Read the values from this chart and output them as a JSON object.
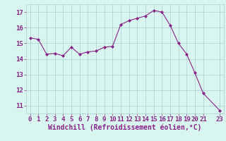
{
  "x": [
    0,
    1,
    2,
    3,
    4,
    5,
    6,
    7,
    8,
    9,
    10,
    11,
    12,
    13,
    14,
    15,
    16,
    17,
    18,
    19,
    20,
    21,
    23
  ],
  "y": [
    15.35,
    15.25,
    14.3,
    14.35,
    14.2,
    14.75,
    14.3,
    14.45,
    14.5,
    14.75,
    14.8,
    16.2,
    16.45,
    16.6,
    16.75,
    17.1,
    17.0,
    16.15,
    15.0,
    14.3,
    13.1,
    11.8,
    10.7
  ],
  "line_color": "#882288",
  "marker": "D",
  "marker_size": 2.0,
  "bg_color": "#d8f5f0",
  "grid_color": "#aacece",
  "xlabel": "Windchill (Refroidissement éolien,°C)",
  "xlabel_color": "#882288",
  "tick_color": "#882288",
  "ylim": [
    10.5,
    17.5
  ],
  "xlim": [
    -0.5,
    23.5
  ],
  "yticks": [
    11,
    12,
    13,
    14,
    15,
    16,
    17
  ],
  "xticks": [
    0,
    1,
    2,
    3,
    4,
    5,
    6,
    7,
    8,
    9,
    10,
    11,
    12,
    13,
    14,
    15,
    16,
    17,
    18,
    19,
    20,
    21,
    23
  ],
  "xtick_labels": [
    "0",
    "1",
    "2",
    "3",
    "4",
    "5",
    "6",
    "7",
    "8",
    "9",
    "10",
    "11",
    "12",
    "13",
    "14",
    "15",
    "16",
    "17",
    "18",
    "19",
    "20",
    "21",
    "23"
  ],
  "font_size": 6.5,
  "xlabel_font_size": 7.0,
  "linewidth": 0.8
}
